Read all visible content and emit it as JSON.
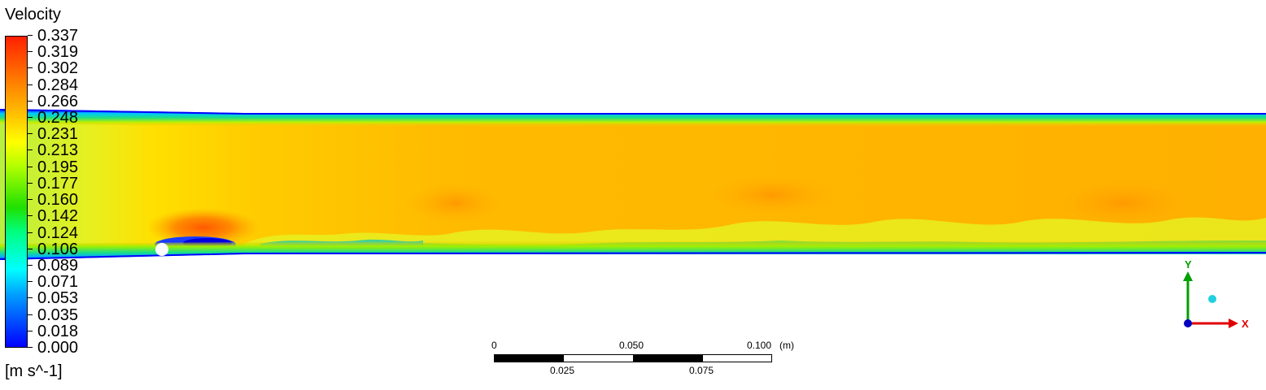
{
  "chart_data": {
    "type": "heatmap",
    "title": "Velocity",
    "units": "[m s^-1]",
    "colorbar": {
      "min": 0.0,
      "max": 0.337,
      "ticks": [
        "0.337",
        "0.319",
        "0.302",
        "0.284",
        "0.266",
        "0.248",
        "0.231",
        "0.213",
        "0.195",
        "0.177",
        "0.160",
        "0.142",
        "0.124",
        "0.106",
        "0.089",
        "0.071",
        "0.053",
        "0.035",
        "0.018",
        "0.000"
      ],
      "colors": [
        "#0000ff",
        "#00a0ff",
        "#00ffff",
        "#00ff80",
        "#20e000",
        "#b0ff00",
        "#ffff00",
        "#ffc000",
        "#ff8800",
        "#ff2000"
      ]
    },
    "field": {
      "description_values": {
        "free_stream_velocity": 0.28,
        "wall_velocity": 0.0,
        "inlet_velocity": 0.23,
        "peak_velocity_near_obstacle": 0.32
      }
    },
    "scale_bar": {
      "top_labels": [
        "0",
        "0.050",
        "0.100"
      ],
      "bottom_labels": [
        "0.025",
        "0.075"
      ],
      "unit": "(m)"
    },
    "axes_triad": {
      "x_label": "X",
      "y_label": "Y"
    }
  }
}
